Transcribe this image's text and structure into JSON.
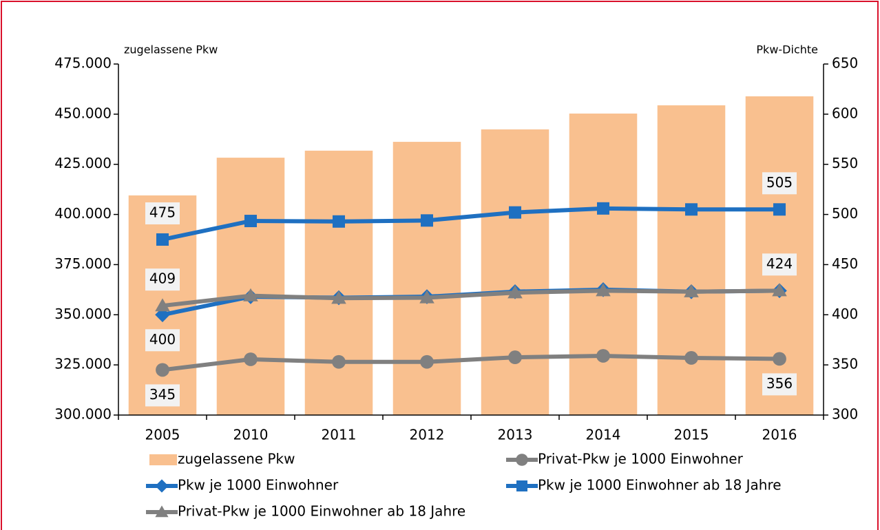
{
  "chart_data": {
    "type": "bar_line",
    "categories": [
      "2005",
      "2010",
      "2011",
      "2012",
      "2013",
      "2014",
      "2015",
      "2016"
    ],
    "ylabel": "zugelassene Pkw",
    "y2label": "Pkw-Dichte",
    "ylim": [
      300000,
      475000
    ],
    "yticks": [
      {
        "value": 300000,
        "label": "300.000"
      },
      {
        "value": 325000,
        "label": "325.000"
      },
      {
        "value": 350000,
        "label": "350.000"
      },
      {
        "value": 375000,
        "label": "375.000"
      },
      {
        "value": 400000,
        "label": "400.000"
      },
      {
        "value": 425000,
        "label": "425.000"
      },
      {
        "value": 450000,
        "label": "450.000"
      },
      {
        "value": 475000,
        "label": "475.000"
      }
    ],
    "y2lim": [
      300,
      650
    ],
    "y2ticks": [
      300,
      350,
      400,
      450,
      500,
      550,
      600,
      650
    ],
    "series": [
      {
        "name": "zugelassene Pkw",
        "type": "bar",
        "color": "#f9c08f",
        "values": [
          409500,
          428300,
          431800,
          436200,
          442400,
          450300,
          454400,
          458900
        ]
      },
      {
        "name": "Privat-Pkw je 1000 Einwohner",
        "type": "line",
        "axis": "y2",
        "marker": "circle",
        "color": "#808080",
        "label_position": "below",
        "values": [
          345,
          355.6,
          353,
          353,
          357.6,
          359,
          357,
          356
        ],
        "value_labels": [
          "345",
          null,
          null,
          null,
          null,
          null,
          null,
          "356"
        ]
      },
      {
        "name": "Pkw je 1000 Einwohner",
        "type": "line",
        "axis": "y2",
        "marker": "diamond",
        "color": "#1f70c1",
        "label_position": "below",
        "values": [
          400,
          418,
          417,
          418,
          423,
          425,
          423,
          424
        ],
        "value_labels": [
          "400",
          null,
          null,
          null,
          null,
          null,
          null,
          null
        ]
      },
      {
        "name": "Pkw je 1000 Einwohner ab 18 Jahre",
        "type": "line",
        "axis": "y2",
        "marker": "square",
        "color": "#1f70c1",
        "label_position": "above",
        "values": [
          475,
          493.5,
          493,
          494,
          502,
          506,
          505,
          505
        ],
        "value_labels": [
          "475",
          null,
          null,
          null,
          null,
          null,
          null,
          "505"
        ]
      },
      {
        "name": "Privat-Pkw je 1000 Einwohner ab 18 Jahre",
        "type": "line",
        "axis": "y2",
        "marker": "triangle",
        "color": "#808080",
        "label_position": "above",
        "values": [
          409,
          419,
          416.5,
          417,
          422,
          424,
          423,
          424
        ],
        "value_labels": [
          "409",
          null,
          null,
          null,
          null,
          null,
          null,
          "424"
        ]
      }
    ]
  }
}
